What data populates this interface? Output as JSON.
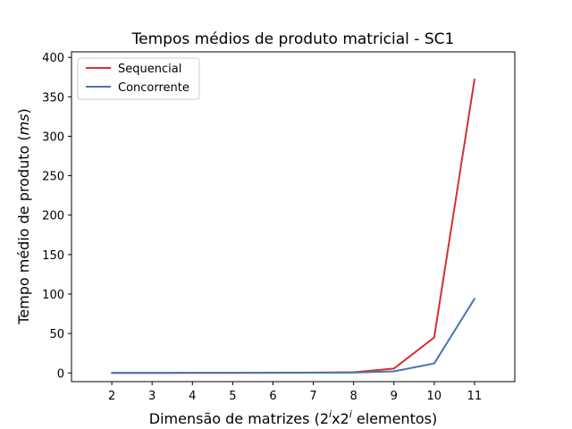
{
  "chart_data": {
    "type": "line",
    "title": "Tempos médios de produto matricial - SC1",
    "xlabel": {
      "prefix": "Dimensão de matrizes (2",
      "sup1": "i",
      "mid": "x2",
      "sup2": "i",
      "suffix": " elementos)"
    },
    "ylabel": {
      "prefix": "Tempo médio de produto (",
      "unit": "ms",
      "suffix": ")"
    },
    "x": [
      2,
      3,
      4,
      5,
      6,
      7,
      8,
      9,
      10,
      11
    ],
    "xlim": [
      1,
      12
    ],
    "ylim": [
      -11,
      407
    ],
    "yticks": [
      0,
      50,
      100,
      150,
      200,
      250,
      300,
      350,
      400
    ],
    "legend_position": "top-left",
    "grid": false,
    "series": [
      {
        "name": "Sequencial",
        "color": "#d62f2f",
        "values": [
          0.05,
          0.1,
          0.15,
          0.2,
          0.3,
          0.45,
          0.9,
          5.5,
          45,
          372
        ]
      },
      {
        "name": "Concorrente",
        "color": "#4a74b0",
        "values": [
          0.05,
          0.1,
          0.12,
          0.15,
          0.2,
          0.3,
          0.5,
          2,
          12,
          94
        ]
      }
    ]
  }
}
